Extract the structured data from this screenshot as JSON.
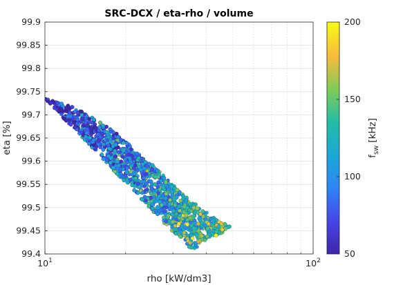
{
  "chart_data": {
    "type": "scatter",
    "title": "SRC-DCX / eta-rho / volume",
    "xlabel": "rho [kW/dm3]",
    "ylabel": "eta [%]",
    "xscale": "log",
    "xlim": [
      10,
      100
    ],
    "ylim": [
      99.4,
      99.9
    ],
    "x_ticks": [
      {
        "value": 10,
        "base": "10",
        "exp": "1"
      },
      {
        "value": 100,
        "base": "10",
        "exp": "2"
      }
    ],
    "y_ticks": [
      "99.4",
      "99.45",
      "99.5",
      "99.55",
      "99.6",
      "99.65",
      "99.7",
      "99.75",
      "99.8",
      "99.85",
      "99.9"
    ],
    "grid": true,
    "colorbar": {
      "label_main": "f",
      "label_sub": "sw",
      "label_unit": "[kHz]",
      "range": [
        50,
        200
      ],
      "ticks": [
        "50",
        "100",
        "150",
        "200"
      ],
      "colormap": "parula"
    },
    "pareto_front": [
      [
        10,
        99.735
      ],
      [
        13,
        99.715
      ],
      [
        16,
        99.685
      ],
      [
        19,
        99.655
      ],
      [
        22,
        99.62
      ],
      [
        26,
        99.585
      ],
      [
        30,
        99.55
      ],
      [
        35,
        99.515
      ],
      [
        40,
        99.49
      ],
      [
        45,
        99.47
      ],
      [
        49,
        99.46
      ],
      [
        46,
        99.445
      ],
      [
        40,
        99.43
      ],
      [
        37,
        99.415
      ],
      [
        36,
        99.4
      ]
    ],
    "region_description": "dense cloud of design points between rho 10 and ~49 kW/dm3, eta 99.4 to ~99.735 %; higher switching frequencies concentrate toward higher rho"
  }
}
